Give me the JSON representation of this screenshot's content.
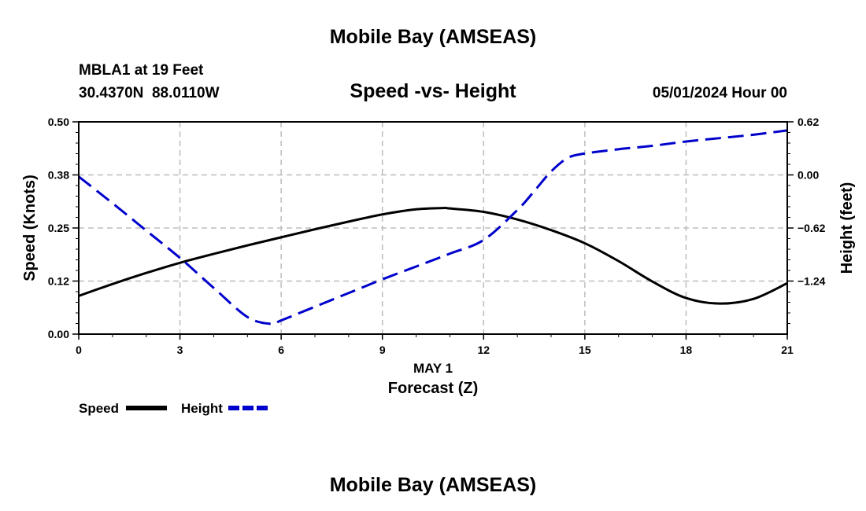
{
  "page": {
    "title_top": "Mobile Bay (AMSEAS)",
    "title_bottom": "Mobile Bay (AMSEAS)",
    "station_line": "MBLA1 at 19 Feet",
    "coords_line": "30.4370N  88.0110W",
    "datetime": "05/01/2024 Hour 00"
  },
  "chart_data": {
    "type": "line",
    "title": "Speed -vs- Height",
    "xlabel": "Forecast (Z)",
    "xlabel_date": "MAY 1",
    "ylabel_left": "Speed (Knots)",
    "ylabel_right": "Height (feet)",
    "xlim": [
      0,
      21
    ],
    "ylim_left": [
      0.0,
      0.5
    ],
    "ylim_right": [
      -1.86,
      0.62
    ],
    "x_ticks": [
      {
        "value": 0,
        "label": "0"
      },
      {
        "value": 3,
        "label": "3"
      },
      {
        "value": 6,
        "label": "6"
      },
      {
        "value": 9,
        "label": "9"
      },
      {
        "value": 12,
        "label": "12"
      },
      {
        "value": 15,
        "label": "15"
      },
      {
        "value": 18,
        "label": "18"
      },
      {
        "value": 21,
        "label": "21"
      }
    ],
    "y_left_ticks": [
      {
        "value": 0.0,
        "label": "0.00"
      },
      {
        "value": 0.125,
        "label": "0.12"
      },
      {
        "value": 0.25,
        "label": "0.25"
      },
      {
        "value": 0.375,
        "label": "0.38"
      },
      {
        "value": 0.5,
        "label": "0.50"
      }
    ],
    "y_right_ticks": [
      {
        "value": -1.24,
        "label": "−1.24"
      },
      {
        "value": -0.62,
        "label": "−0.62"
      },
      {
        "value": 0.0,
        "label": "0.00"
      },
      {
        "value": 0.62,
        "label": "0.62"
      }
    ],
    "grid": true,
    "legend_position": "bottom-left",
    "series": [
      {
        "name": "Speed",
        "axis": "left",
        "color": "#000000",
        "style": "solid",
        "x": [
          0,
          1,
          2,
          3,
          4,
          5,
          6,
          7,
          8,
          9,
          10,
          10.8,
          11,
          12,
          13,
          14,
          15,
          16,
          17,
          18,
          19,
          20,
          21
        ],
        "values": [
          0.09,
          0.118,
          0.144,
          0.168,
          0.189,
          0.209,
          0.228,
          0.247,
          0.265,
          0.282,
          0.294,
          0.297,
          0.296,
          0.288,
          0.27,
          0.245,
          0.214,
          0.172,
          0.124,
          0.085,
          0.072,
          0.083,
          0.12
        ]
      },
      {
        "name": "Height",
        "axis": "right",
        "color": "#0000cc",
        "style": "dashed",
        "x": [
          0,
          1,
          2,
          3,
          4,
          5,
          5.7,
          6,
          7,
          8,
          9,
          10,
          11,
          12,
          13,
          13.5,
          14,
          14.5,
          15,
          16,
          17,
          18,
          19,
          20,
          21
        ],
        "values": [
          -0.02,
          -0.33,
          -0.65,
          -0.97,
          -1.32,
          -1.66,
          -1.74,
          -1.7,
          -1.54,
          -1.38,
          -1.22,
          -1.07,
          -0.92,
          -0.76,
          -0.41,
          -0.19,
          0.04,
          0.2,
          0.25,
          0.3,
          0.34,
          0.39,
          0.43,
          0.47,
          0.52
        ]
      }
    ]
  }
}
